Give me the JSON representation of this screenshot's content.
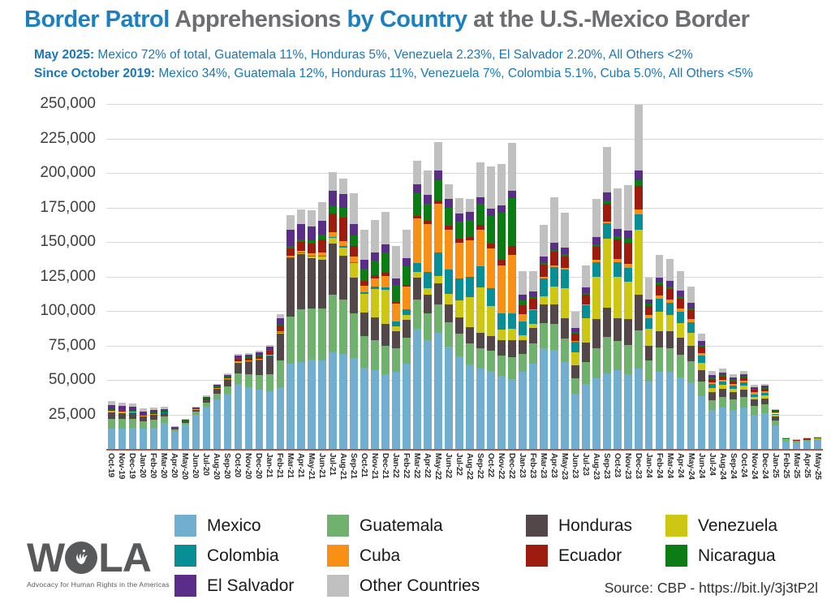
{
  "header": {
    "title_part1": "Border Patrol",
    "title_part2": " Apprehensions ",
    "title_part3": "by Country",
    "title_part4": " at the U.S.-Mexico Border",
    "subtitle1_lead": "May 2025:",
    "subtitle1_rest": " Mexico 72% of total, Guatemala 11%, Honduras 5%, Venezuela 2.23%, El Salvador 2.20%, All Others <2%",
    "subtitle2_lead": "Since October 2019:",
    "subtitle2_rest": " Mexico 34%, Guatemala 12%, Honduras 11%, Venezuela 7%, Colombia 5.1%, Cuba 5.0%, All Others <5%"
  },
  "colors": {
    "title_blue": "#1b7fc0",
    "title_gray": "#6d6e71",
    "subtitle_blue": "#1878ba",
    "axis_line_red": "#bb5345",
    "gridline": "#d8d8d8"
  },
  "y_axis": {
    "tick_labels": [
      "250,000",
      "225,000",
      "200,000",
      "175,000",
      "150,000",
      "125,000",
      "100,000",
      "75,000",
      "50,000",
      "25,000"
    ]
  },
  "chart_data": {
    "type": "bar",
    "stacked": true,
    "title": "Border Patrol Apprehensions by Country at the U.S.-Mexico Border",
    "xlabel": "",
    "ylabel": "",
    "ylim": [
      0,
      250000
    ],
    "ytick_interval": 25000,
    "grid": "horizontal",
    "legend_position": "bottom",
    "values_unit": "persons (approx., read from chart)",
    "categories": [
      "Oct-19",
      "Nov-19",
      "Dec-19",
      "Jan-20",
      "Feb-20",
      "Mar-20",
      "Apr-20",
      "May-20",
      "Jun-20",
      "Jul-20",
      "Aug-20",
      "Sep-20",
      "Oct-20",
      "Nov-20",
      "Dec-20",
      "Jan-21",
      "Feb-21",
      "Mar-21",
      "Apr-21",
      "May-21",
      "Jun-21",
      "Jul-21",
      "Aug-21",
      "Sep-21",
      "Oct-21",
      "Nov-21",
      "Dec-21",
      "Jan-22",
      "Feb-22",
      "Mar-22",
      "Apr-22",
      "May-22",
      "Jun-22",
      "Jul-22",
      "Aug-22",
      "Sep-22",
      "Oct-22",
      "Nov-22",
      "Dec-22",
      "Jan-23",
      "Feb-23",
      "Mar-23",
      "Apr-23",
      "May-23",
      "Jun-23",
      "Jul-23",
      "Aug-23",
      "Sep-23",
      "Oct-23",
      "Nov-23",
      "Dec-23",
      "Jan-24",
      "Feb-24",
      "Mar-24",
      "Apr-24",
      "May-24",
      "Jun-24",
      "Jul-24",
      "Aug-24",
      "Sep-24",
      "Oct-24",
      "Nov-24",
      "Dec-24",
      "Jan-25",
      "Feb-25",
      "Mar-25",
      "Apr-25",
      "May-25"
    ],
    "series": [
      {
        "name": "Mexico",
        "color": "#72aecf",
        "values": [
          15000,
          15000,
          15500,
          14500,
          15500,
          19000,
          13000,
          17500,
          25000,
          30500,
          36000,
          40000,
          47000,
          45000,
          43000,
          42000,
          45000,
          62000,
          63000,
          65000,
          64000,
          70000,
          69000,
          66000,
          59000,
          57000,
          54000,
          56000,
          62000,
          87000,
          79000,
          84000,
          74000,
          67000,
          61000,
          58000,
          56500,
          53000,
          50500,
          56000,
          62000,
          73000,
          72000,
          63000,
          40000,
          47000,
          51000,
          55000,
          57000,
          54000,
          58000,
          49000,
          56000,
          56000,
          52000,
          48000,
          38000,
          28000,
          30000,
          28500,
          30000,
          25000,
          26000,
          17000,
          5500,
          5000,
          6000,
          6300
        ]
      },
      {
        "name": "Guatemala",
        "color": "#6fb16d",
        "values": [
          7000,
          6800,
          6500,
          5500,
          5600,
          4300,
          1200,
          1500,
          2100,
          3000,
          4200,
          5500,
          8000,
          9000,
          10500,
          12000,
          19000,
          34000,
          38000,
          37000,
          38000,
          42000,
          39000,
          32000,
          23000,
          22000,
          21000,
          17000,
          18500,
          21500,
          19500,
          21000,
          18000,
          16500,
          15500,
          15000,
          14500,
          14800,
          16000,
          13000,
          14500,
          18000,
          18500,
          17000,
          11000,
          16000,
          22000,
          26000,
          21000,
          21500,
          28000,
          15000,
          17500,
          17000,
          16500,
          15500,
          11000,
          7500,
          7800,
          7200,
          7600,
          6200,
          6300,
          3800,
          1000,
          800,
          900,
          1000
        ]
      },
      {
        "name": "Honduras",
        "color": "#54474a",
        "values": [
          5200,
          4800,
          4500,
          3800,
          3900,
          3200,
          1000,
          1300,
          1800,
          2600,
          3800,
          5000,
          8000,
          9500,
          11000,
          13500,
          20000,
          42000,
          40000,
          36000,
          35000,
          37000,
          32000,
          26000,
          17000,
          16500,
          15500,
          12500,
          13000,
          15500,
          13500,
          15000,
          13000,
          12000,
          11500,
          11000,
          10500,
          11000,
          12500,
          10000,
          11000,
          13500,
          14000,
          14500,
          9500,
          14000,
          21000,
          21500,
          17000,
          18500,
          26000,
          11000,
          12000,
          12500,
          12000,
          11500,
          8000,
          5500,
          5600,
          5200,
          5500,
          4500,
          4400,
          2600,
          500,
          400,
          400,
          400
        ]
      },
      {
        "name": "Venezuela",
        "color": "#cdc713",
        "values": [
          100,
          100,
          100,
          100,
          100,
          100,
          0,
          0,
          0,
          0,
          100,
          100,
          100,
          100,
          100,
          200,
          300,
          600,
          900,
          1300,
          2200,
          4000,
          6100,
          10500,
          13100,
          20300,
          24800,
          3100,
          3400,
          4000,
          4200,
          5100,
          7600,
          12400,
          22000,
          33000,
          22000,
          7800,
          8200,
          3600,
          3000,
          6000,
          13000,
          22000,
          9700,
          18000,
          31000,
          50000,
          30000,
          27000,
          47000,
          12000,
          14000,
          11500,
          10500,
          9000,
          5500,
          3000,
          2800,
          2500,
          2600,
          2100,
          2100,
          1200,
          200,
          200,
          200,
          200
        ]
      },
      {
        "name": "Colombia",
        "color": "#088f96",
        "values": [
          100,
          100,
          100,
          100,
          100,
          100,
          0,
          0,
          0,
          100,
          100,
          100,
          200,
          200,
          200,
          200,
          300,
          400,
          400,
          500,
          600,
          800,
          900,
          1000,
          1200,
          1600,
          2000,
          3500,
          4500,
          7000,
          12000,
          17000,
          17500,
          15500,
          14500,
          15500,
          13000,
          11500,
          11000,
          9500,
          10000,
          13000,
          14500,
          13500,
          7500,
          9000,
          10500,
          11000,
          10500,
          10000,
          11000,
          8000,
          9500,
          9000,
          8500,
          7500,
          5000,
          2800,
          2600,
          2300,
          2300,
          1900,
          1900,
          1000,
          200,
          100,
          200,
          200
        ]
      },
      {
        "name": "Cuba",
        "color": "#f99016",
        "values": [
          400,
          400,
          300,
          300,
          300,
          200,
          100,
          100,
          100,
          100,
          200,
          200,
          300,
          300,
          400,
          500,
          600,
          1000,
          1500,
          2000,
          2500,
          3000,
          3500,
          3800,
          5000,
          6000,
          8000,
          13000,
          16000,
          32000,
          35000,
          35500,
          29000,
          26000,
          26500,
          26500,
          28800,
          34600,
          42600,
          5600,
          900,
          1000,
          1100,
          1000,
          800,
          1000,
          1300,
          1500,
          2000,
          3000,
          3500,
          2000,
          2200,
          2300,
          2400,
          2600,
          2000,
          1300,
          1400,
          1300,
          1400,
          1200,
          1200,
          700,
          100,
          100,
          100,
          100
        ]
      },
      {
        "name": "Ecuador",
        "color": "#9e1b10",
        "values": [
          600,
          500,
          500,
          500,
          500,
          400,
          100,
          200,
          300,
          400,
          600,
          1000,
          1600,
          1800,
          2200,
          2700,
          4000,
          5500,
          6200,
          7000,
          9500,
          14000,
          17000,
          8000,
          3500,
          2500,
          2200,
          1600,
          1600,
          2000,
          2200,
          2400,
          2500,
          2700,
          2800,
          3200,
          3500,
          4500,
          6000,
          6600,
          7500,
          9000,
          10000,
          8500,
          5000,
          6500,
          9500,
          12500,
          14000,
          15500,
          17000,
          6500,
          7500,
          7700,
          7100,
          6300,
          4500,
          2600,
          2400,
          2100,
          2200,
          1800,
          1700,
          900,
          200,
          100,
          100,
          100
        ]
      },
      {
        "name": "Nicaragua",
        "color": "#0c7c15",
        "values": [
          300,
          300,
          300,
          200,
          200,
          200,
          100,
          100,
          100,
          200,
          300,
          400,
          500,
          500,
          500,
          600,
          800,
          1500,
          2000,
          2500,
          3500,
          5000,
          7000,
          7500,
          9000,
          10500,
          15000,
          12000,
          13500,
          16500,
          12500,
          14500,
          13000,
          12500,
          12200,
          15400,
          20000,
          34000,
          35000,
          3400,
          1100,
          1200,
          1300,
          1400,
          1000,
          1400,
          2000,
          2600,
          2500,
          3000,
          4000,
          1700,
          1900,
          1800,
          1700,
          1600,
          1200,
          800,
          800,
          700,
          700,
          600,
          600,
          300,
          100,
          100,
          100,
          100
        ]
      },
      {
        "name": "El Salvador",
        "color": "#5a2d88",
        "values": [
          3200,
          3000,
          2800,
          2200,
          2200,
          1600,
          400,
          500,
          700,
          1000,
          1200,
          1500,
          2000,
          2000,
          2000,
          2300,
          5000,
          12000,
          11000,
          10000,
          10000,
          11000,
          10000,
          8000,
          6500,
          6000,
          6000,
          5000,
          5500,
          6500,
          6000,
          7000,
          6300,
          6000,
          5500,
          5000,
          5100,
          5000,
          5500,
          4000,
          4200,
          5000,
          5200,
          5100,
          3000,
          4000,
          5500,
          6000,
          5500,
          5600,
          7200,
          3000,
          3500,
          3700,
          3800,
          3900,
          2800,
          1900,
          1900,
          1800,
          1900,
          1500,
          1500,
          900,
          200,
          200,
          200,
          200
        ]
      },
      {
        "name": "Other Countries",
        "color": "#c0c0c0",
        "values": [
          2600,
          2500,
          2300,
          2000,
          1900,
          1300,
          300,
          400,
          500,
          700,
          800,
          1000,
          1300,
          1300,
          1200,
          1300,
          2600,
          10200,
          10700,
          11400,
          13300,
          14000,
          11500,
          22700,
          21800,
          23600,
          23300,
          23300,
          21000,
          17000,
          17900,
          21000,
          11000,
          11000,
          9500,
          25000,
          31000,
          30000,
          34500,
          17200,
          14700,
          22600,
          32500,
          25000,
          12000,
          15800,
          27300,
          32700,
          29300,
          33000,
          48000,
          16000,
          16500,
          16000,
          14500,
          12000,
          5500,
          3000,
          2700,
          2300,
          2300,
          1800,
          1600,
          700,
          300,
          200,
          200,
          100
        ]
      }
    ]
  },
  "legend": {
    "items": [
      {
        "label": "Mexico",
        "color": "#72aecf"
      },
      {
        "label": "Guatemala",
        "color": "#6fb16d"
      },
      {
        "label": "Honduras",
        "color": "#54474a"
      },
      {
        "label": "Venezuela",
        "color": "#cdc713"
      },
      {
        "label": "Colombia",
        "color": "#088f96"
      },
      {
        "label": "Cuba",
        "color": "#f99016"
      },
      {
        "label": "Ecuador",
        "color": "#9e1b10"
      },
      {
        "label": "Nicaragua",
        "color": "#0c7c15"
      },
      {
        "label": "El Salvador",
        "color": "#5a2d88"
      },
      {
        "label": "Other Countries",
        "color": "#c0c0c0"
      }
    ]
  },
  "footer": {
    "logo_text_left": "W",
    "logo_text_right": "LA",
    "logo_tagline": "Advocacy for Human Rights in the Americas",
    "source": "Source: CBP - https://bit.ly/3j3tP2l"
  }
}
